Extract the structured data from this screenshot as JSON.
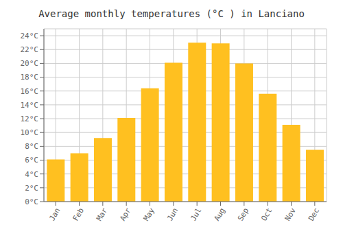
{
  "chart_data": {
    "type": "bar",
    "title": "Average monthly temperatures (°C ) in Lanciano",
    "categories": [
      "Jan",
      "Feb",
      "Mar",
      "Apr",
      "May",
      "Jun",
      "Jul",
      "Aug",
      "Sep",
      "Oct",
      "Nov",
      "Dec"
    ],
    "values": [
      6.1,
      7.0,
      9.2,
      12.1,
      16.4,
      20.1,
      23.0,
      22.9,
      20.0,
      15.6,
      11.1,
      7.5
    ],
    "color": "#FFC020",
    "ylim": [
      0,
      25
    ],
    "yticks": [
      {
        "value": 0,
        "label": "0°C"
      },
      {
        "value": 2,
        "label": "2°C"
      },
      {
        "value": 4,
        "label": "4°C"
      },
      {
        "value": 6,
        "label": "6°C"
      },
      {
        "value": 8,
        "label": "8°C"
      },
      {
        "value": 10,
        "label": "10°C"
      },
      {
        "value": 12,
        "label": "12°C"
      },
      {
        "value": 14,
        "label": "14°C"
      },
      {
        "value": 16,
        "label": "16°C"
      },
      {
        "value": 18,
        "label": "18°C"
      },
      {
        "value": 20,
        "label": "20°C"
      },
      {
        "value": 22,
        "label": "22°C"
      },
      {
        "value": 24,
        "label": "24°C"
      }
    ],
    "grid": true
  }
}
